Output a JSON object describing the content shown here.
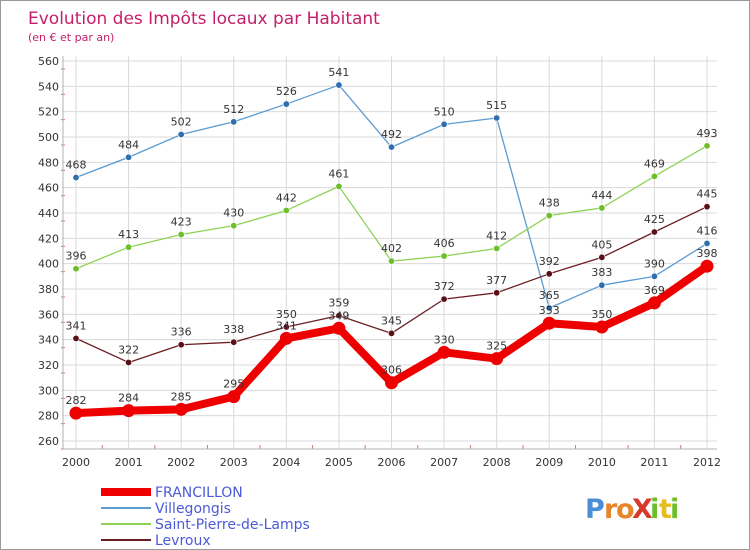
{
  "chart_data": {
    "type": "line",
    "title": "Evolution des Impôts locaux par Habitant",
    "subtitle": "(en € et par an)",
    "categories": [
      "2000",
      "2001",
      "2002",
      "2003",
      "2004",
      "2005",
      "2006",
      "2007",
      "2008",
      "2009",
      "2010",
      "2011",
      "2012"
    ],
    "ylim": [
      260,
      560
    ],
    "yticks": [
      260,
      280,
      300,
      320,
      340,
      360,
      380,
      400,
      420,
      440,
      460,
      480,
      500,
      520,
      540,
      560
    ],
    "grid": true,
    "legend_position": "bottom-left",
    "series": [
      {
        "name": "Villegongis",
        "color": "#5b9bd1",
        "dot": "#2f6fb0",
        "values": [
          468,
          484,
          502,
          512,
          526,
          541,
          492,
          510,
          515,
          365,
          383,
          390,
          416
        ]
      },
      {
        "name": "Saint-Pierre-de-Lamps",
        "color": "#8ed255",
        "dot": "#6cbf2a",
        "values": [
          396,
          413,
          423,
          430,
          442,
          461,
          402,
          406,
          412,
          438,
          444,
          469,
          493
        ]
      },
      {
        "name": "Levroux",
        "color": "#6b1f24",
        "dot": "#5a1016",
        "values": [
          341,
          322,
          336,
          338,
          350,
          359,
          345,
          372,
          377,
          392,
          405,
          425,
          445
        ]
      },
      {
        "name": "FRANCILLON",
        "color": "#ee0000",
        "dot": "#ee0000",
        "bold": true,
        "values": [
          282,
          284,
          285,
          295,
          341,
          349,
          306,
          330,
          325,
          353,
          350,
          369,
          398
        ]
      }
    ],
    "legend_order": [
      "FRANCILLON",
      "Villegongis",
      "Saint-Pierre-de-Lamps",
      "Levroux"
    ]
  },
  "logo": {
    "text": "ProXiti",
    "letters": [
      "P",
      "r",
      "o",
      "X",
      "i",
      "t",
      "i"
    ],
    "colors": [
      "#4a8fd6",
      "#e8842a",
      "#e8842a",
      "#d8392b",
      "#6cbf2a",
      "#e3c020",
      "#6cbf2a"
    ]
  }
}
